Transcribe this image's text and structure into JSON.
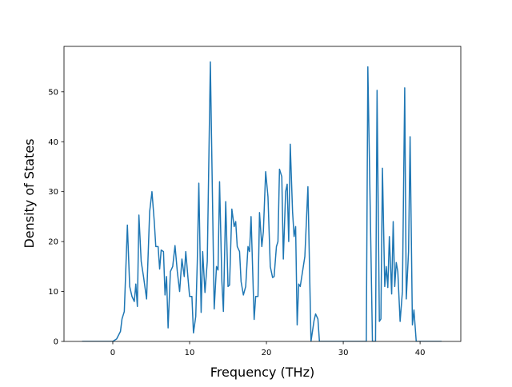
{
  "chart_data": {
    "type": "line",
    "xlabel": "Frequency (THz)",
    "ylabel": "Density of States",
    "xlim": [
      -6.35,
      45.3
    ],
    "ylim": [
      0,
      59.1
    ],
    "xticks": [
      0,
      10,
      20,
      30,
      40
    ],
    "yticks": [
      0,
      10,
      20,
      30,
      40,
      50
    ],
    "series": [
      {
        "color": "#1f77b4",
        "x": [
          -4,
          0,
          0.5,
          1,
          1.2,
          1.5,
          1.9,
          2.2,
          2.5,
          2.8,
          3.0,
          3.2,
          3.4,
          3.7,
          4.0,
          4.4,
          4.8,
          5.1,
          5.4,
          5.6,
          5.9,
          6.1,
          6.3,
          6.6,
          6.8,
          7.0,
          7.2,
          7.5,
          7.8,
          8.1,
          8.4,
          8.7,
          9.0,
          9.3,
          9.5,
          9.8,
          10.0,
          10.3,
          10.5,
          10.8,
          11.0,
          11.2,
          11.5,
          11.7,
          12.0,
          12.3,
          12.7,
          13.2,
          13.5,
          13.7,
          13.9,
          14.2,
          14.4,
          14.7,
          15.0,
          15.2,
          15.5,
          15.8,
          16.0,
          16.2,
          16.5,
          16.7,
          17.0,
          17.3,
          17.6,
          17.8,
          18.0,
          18.4,
          18.6,
          18.9,
          19.1,
          19.4,
          19.6,
          19.9,
          20.2,
          20.5,
          20.8,
          21.0,
          21.3,
          21.5,
          21.7,
          22.0,
          22.2,
          22.5,
          22.7,
          22.9,
          23.1,
          23.4,
          23.6,
          23.8,
          24.0,
          24.2,
          24.4,
          24.7,
          25.0,
          25.4,
          25.8,
          26.2,
          26.4,
          26.7,
          26.9,
          33.0,
          33.2,
          33.8,
          34.2,
          34.4,
          34.7,
          34.9,
          35.1,
          35.4,
          35.6,
          35.8,
          36.0,
          36.3,
          36.5,
          36.7,
          36.9,
          37.1,
          37.4,
          37.7,
          38.0,
          38.2,
          38.5,
          38.7,
          39.0,
          39.2,
          39.5,
          42.8
        ],
        "values": [
          0,
          0,
          0.5,
          2,
          4.5,
          6,
          23.3,
          11,
          9,
          8,
          11.5,
          7,
          25.3,
          16,
          13,
          8.5,
          26,
          30,
          24,
          19,
          19,
          14.5,
          18.3,
          18,
          9.3,
          13,
          2.7,
          14,
          15,
          19.2,
          14,
          10,
          16.5,
          13,
          18,
          12.5,
          9,
          9,
          1.7,
          5,
          16,
          31.7,
          5.8,
          18,
          9.8,
          16,
          56,
          6.5,
          15,
          14.3,
          32,
          12,
          6,
          28,
          11,
          11.3,
          26.5,
          23,
          24,
          19,
          18,
          12,
          9.3,
          11,
          19,
          18,
          25,
          4.4,
          9,
          9,
          25.8,
          19,
          22,
          34,
          29,
          15,
          12.8,
          13,
          19,
          20,
          34.5,
          33,
          16.5,
          30,
          31.5,
          20,
          39.5,
          26,
          21,
          23,
          3.3,
          11.5,
          11,
          14,
          17,
          31,
          0,
          4.2,
          5.5,
          4.5,
          0,
          0,
          55,
          0,
          0,
          50.3,
          4,
          4.5,
          34.7,
          11,
          15,
          10.8,
          21,
          9.5,
          24,
          11,
          15.8,
          14,
          4,
          10,
          50.8,
          8.5,
          18,
          41,
          3.3,
          6.3,
          0,
          0
        ]
      }
    ]
  }
}
